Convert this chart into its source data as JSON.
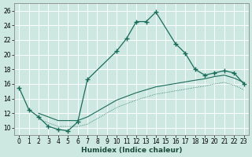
{
  "xlabel": "Humidex (Indice chaleur)",
  "bg_color": "#cce8e0",
  "grid_color": "#ffffff",
  "line_color": "#1a6b5a",
  "xlim": [
    -0.5,
    23.5
  ],
  "ylim": [
    9,
    27
  ],
  "xticks": [
    0,
    1,
    2,
    3,
    4,
    5,
    6,
    7,
    8,
    9,
    10,
    11,
    12,
    13,
    14,
    15,
    16,
    17,
    18,
    19,
    20,
    21,
    22,
    23
  ],
  "yticks": [
    10,
    12,
    14,
    16,
    18,
    20,
    22,
    24,
    26
  ],
  "curve1_x": [
    0,
    1,
    2,
    3,
    4,
    5,
    6,
    7,
    10,
    11,
    12,
    13,
    14,
    16,
    17,
    18,
    19,
    20,
    21,
    22,
    23
  ],
  "curve1_y": [
    15.5,
    12.5,
    11.5,
    10.2,
    9.8,
    9.6,
    10.8,
    16.6,
    20.5,
    22.2,
    24.5,
    24.5,
    25.8,
    21.5,
    20.2,
    18.0,
    17.2,
    17.5,
    17.8,
    17.5,
    16.0
  ],
  "curve2_x": [
    2,
    4,
    6,
    7,
    10,
    11,
    12,
    13,
    14,
    18,
    19,
    20,
    21,
    22,
    23
  ],
  "curve2_y": [
    12.0,
    11.0,
    11.0,
    11.5,
    13.8,
    14.3,
    14.8,
    15.2,
    15.6,
    16.5,
    16.7,
    17.0,
    17.2,
    16.8,
    16.2
  ],
  "curve3_x": [
    2,
    4,
    6,
    7,
    10,
    11,
    12,
    13,
    14,
    18,
    19,
    20,
    21,
    22,
    23
  ],
  "curve3_y": [
    11.2,
    10.2,
    10.2,
    10.5,
    12.8,
    13.3,
    13.8,
    14.2,
    14.6,
    15.5,
    15.7,
    16.0,
    16.2,
    15.8,
    15.2
  ]
}
